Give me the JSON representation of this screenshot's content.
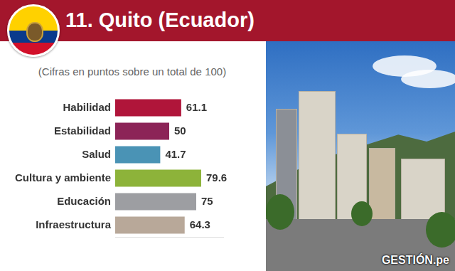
{
  "chart_data": {
    "type": "bar",
    "title": "11. Quito (Ecuador)",
    "subtitle": "(Cifras en puntos sobre un total de 100)",
    "categories": [
      "Habilidad",
      "Estabilidad",
      "Salud",
      "Cultura y ambiente",
      "Educación",
      "Infraestructura"
    ],
    "values": [
      61.1,
      50,
      41.7,
      79.6,
      75,
      64.3
    ],
    "colors": [
      "#b0153a",
      "#8c2457",
      "#4a93b5",
      "#8db33a",
      "#9d9ea2",
      "#b8a899"
    ],
    "orientation": "horizontal",
    "xlim": [
      0,
      100
    ],
    "grid": false,
    "data_labels": true,
    "tick_labels": "y",
    "annotations": [
      "GESTIÓN.pe"
    ]
  }
}
